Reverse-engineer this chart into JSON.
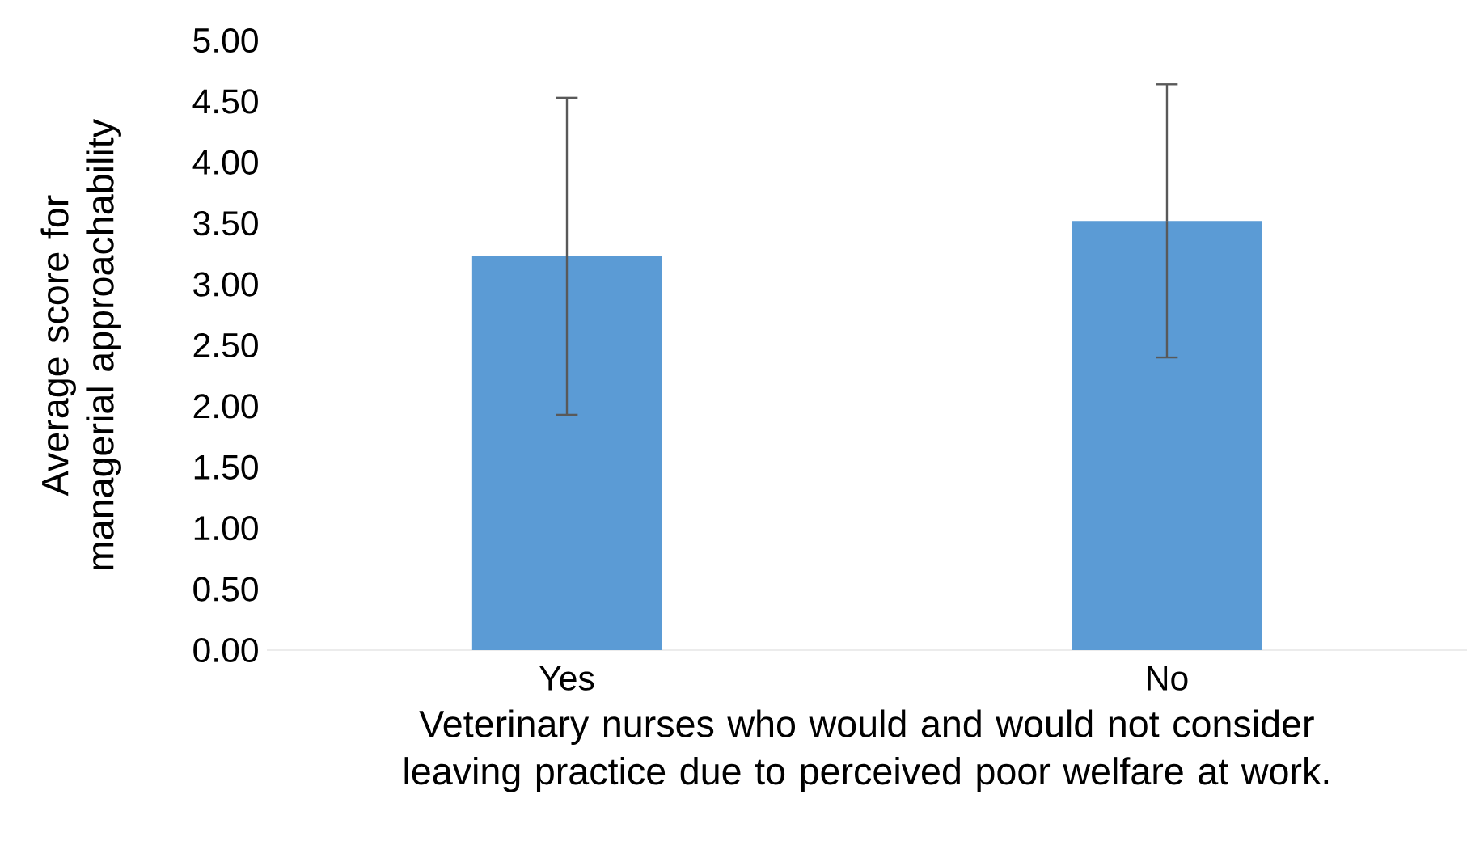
{
  "chart_data": {
    "type": "bar",
    "xlabel": "Veterinary nurses who would and would not consider leaving practice due to perceived poor welfare at work.",
    "ylabel": "Average score for managerial approachability",
    "categories": [
      "Yes",
      "No"
    ],
    "values": [
      3.23,
      3.52
    ],
    "errors": [
      1.3,
      1.12
    ],
    "color": "#5b9bd5",
    "ylim": [
      0,
      5
    ],
    "yticks": [
      {
        "value": 0,
        "label": "0.00"
      },
      {
        "value": 0.5,
        "label": "0.50"
      },
      {
        "value": 1,
        "label": "1.00"
      },
      {
        "value": 1.5,
        "label": "1.50"
      },
      {
        "value": 2,
        "label": "2.00"
      },
      {
        "value": 2.5,
        "label": "2.50"
      },
      {
        "value": 3,
        "label": "3.00"
      },
      {
        "value": 3.5,
        "label": "3.50"
      },
      {
        "value": 4,
        "label": "4.00"
      },
      {
        "value": 4.5,
        "label": "4.50"
      },
      {
        "value": 5,
        "label": "5.00"
      }
    ],
    "grid": false
  }
}
